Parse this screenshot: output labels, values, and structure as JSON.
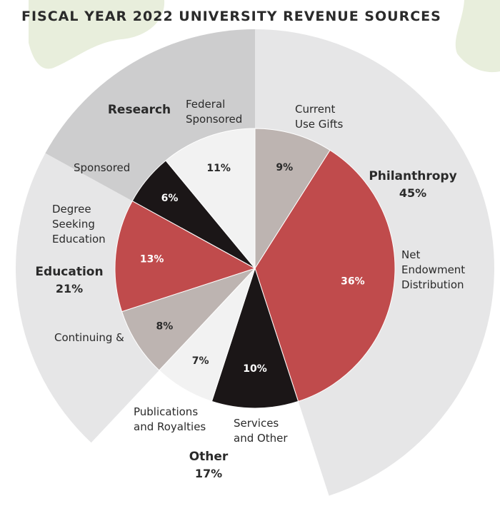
{
  "chart_data": {
    "type": "pie",
    "title": "FISCAL YEAR 2022 UNIVERSITY REVENUE SOURCES",
    "groups": [
      {
        "name": "Philanthropy",
        "value_label": "45%",
        "value": 45
      },
      {
        "name": "Other",
        "value_label": "17%",
        "value": 17
      },
      {
        "name": "Education",
        "value_label": "21%",
        "value": 21
      },
      {
        "name": "Research",
        "value_label": "",
        "value": 17
      }
    ],
    "slices": [
      {
        "group": "Philanthropy",
        "label": [
          "Current",
          "Use Gifts"
        ],
        "value": 9,
        "value_label": "9%",
        "color": "#bdb4b1"
      },
      {
        "group": "Philanthropy",
        "label": [
          "Net",
          "Endowment",
          "Distribution"
        ],
        "value": 36,
        "value_label": "36%",
        "color": "#c04b4c"
      },
      {
        "group": "Other",
        "label": [
          "Services",
          "and Other"
        ],
        "value": 10,
        "value_label": "10%",
        "color": "#1b1617"
      },
      {
        "group": "Other",
        "label": [
          "Publications",
          "and Royalties"
        ],
        "value": 7,
        "value_label": "7%",
        "color": "#f2f2f2"
      },
      {
        "group": "Education",
        "label": [
          "Continuing &"
        ],
        "value": 8,
        "value_label": "8%",
        "color": "#bdb4b1"
      },
      {
        "group": "Education",
        "label": [
          "Degree",
          "Seeking",
          "Education"
        ],
        "value": 13,
        "value_label": "13%",
        "color": "#c04b4c"
      },
      {
        "group": "Research",
        "label": [
          "Sponsored"
        ],
        "value": 6,
        "value_label": "6%",
        "color": "#1b1617"
      },
      {
        "group": "Research",
        "label": [
          "Federal",
          "Sponsored"
        ],
        "value": 11,
        "value_label": "11%",
        "color": "#f2f2f2"
      }
    ],
    "colors": {
      "outer_ring_light": "#e6e6e7",
      "outer_ring_dark": "#cdcdce",
      "map_patch": "#e8eedc",
      "text": "#2a2a2a"
    }
  }
}
